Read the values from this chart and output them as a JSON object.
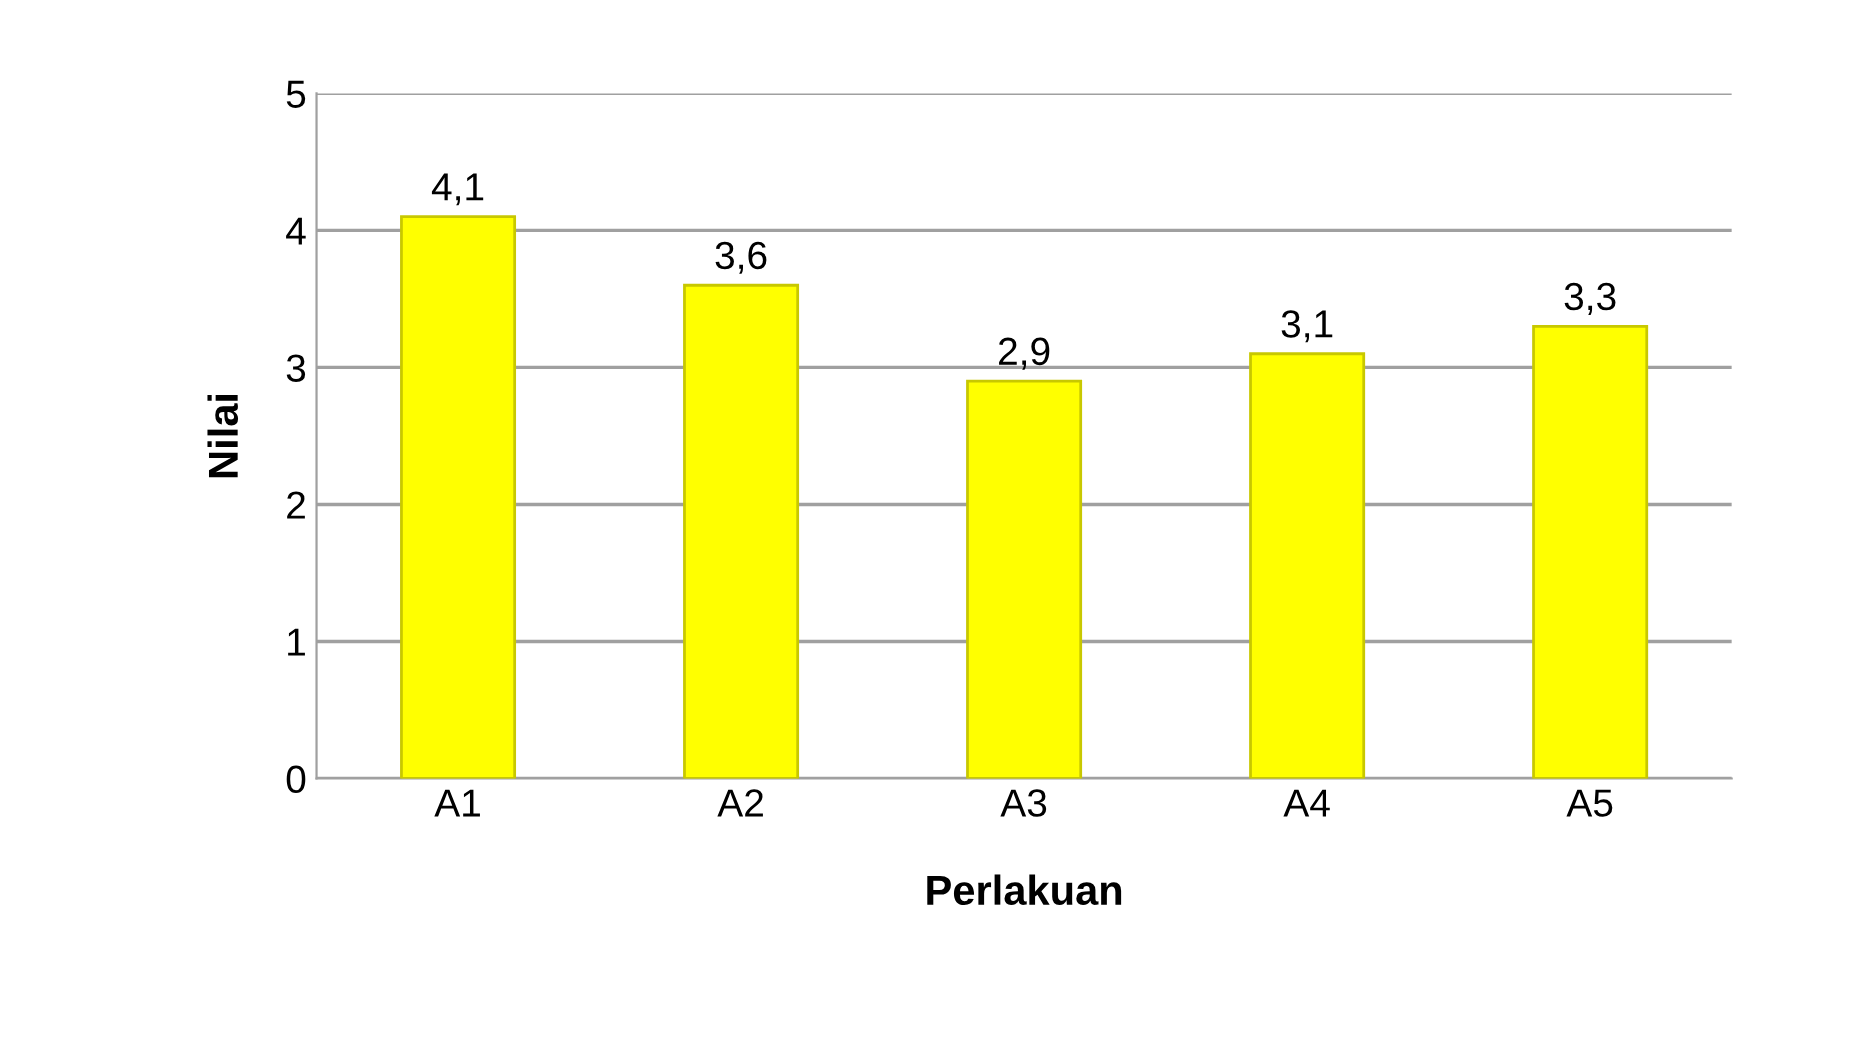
{
  "chart_data": {
    "type": "bar",
    "xlabel": "Perlakuan",
    "ylabel": "Nilai",
    "categories": [
      "A1",
      "A2",
      "A3",
      "A4",
      "A5"
    ],
    "values": [
      4.1,
      3.6,
      2.9,
      3.1,
      3.3
    ],
    "value_labels": [
      "4,1",
      "3,6",
      "2,9",
      "3,1",
      "3,3"
    ],
    "color": "#ffff00",
    "ylim": [
      0,
      5
    ],
    "yticks": [
      0,
      1,
      2,
      3,
      4,
      5
    ],
    "grid": "y"
  }
}
